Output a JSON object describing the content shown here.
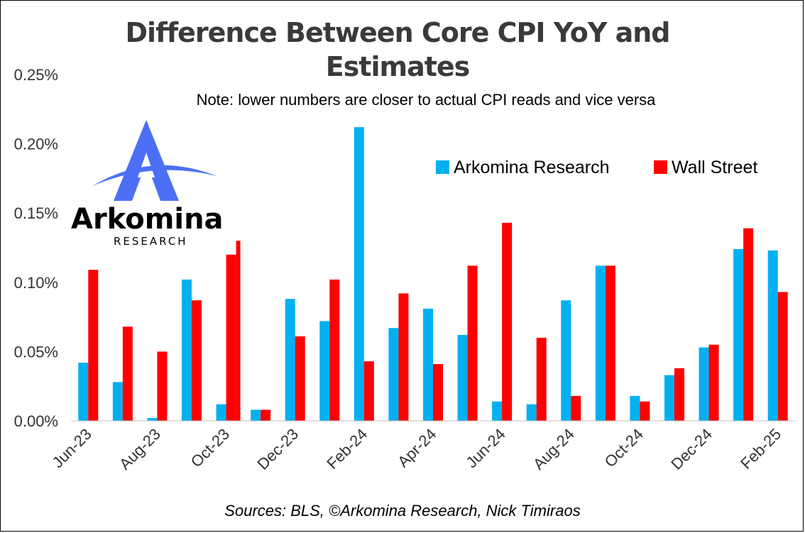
{
  "chart_data": {
    "type": "bar",
    "title": "Difference Between Core CPI YoY and Estimates",
    "subtitle": "Note: lower numbers are closer to actual CPI reads and vice versa",
    "source": "Sources: BLS, ©Arkomina Research, Nick Timiraos",
    "xlabel": "",
    "ylabel": "",
    "ylim": [
      0,
      0.25
    ],
    "yticks": [
      "0.00%",
      "0.05%",
      "0.10%",
      "0.15%",
      "0.20%",
      "0.25%"
    ],
    "grid": false,
    "legend_position": "top-right",
    "categories": [
      "Jun-23",
      "Jul-23",
      "Aug-23",
      "Sep-23",
      "Oct-23",
      "Nov-23",
      "Dec-23",
      "Jan-24",
      "Feb-24",
      "Mar-24",
      "Apr-24",
      "May-24",
      "Jun-24",
      "Jul-24",
      "Aug-24",
      "Sep-24",
      "Oct-24",
      "Nov-24",
      "Dec-24",
      "Jan-25",
      "Feb-25"
    ],
    "tick_labels": [
      "Jun-23",
      "Aug-23",
      "Oct-23",
      "Dec-23",
      "Feb-24",
      "Apr-24",
      "Jun-24",
      "Aug-24",
      "Oct-24",
      "Dec-24",
      "Feb-25"
    ],
    "series": [
      {
        "name": "Arkomina Research",
        "color": "#00B0F0",
        "values": [
          0.042,
          0.028,
          0.002,
          0.102,
          0.012,
          0.008,
          0.088,
          0.072,
          0.212,
          0.067,
          0.081,
          0.062,
          0.014,
          0.012,
          0.087,
          0.112,
          0.018,
          0.033,
          0.053,
          0.124,
          0.123
        ]
      },
      {
        "name": "Wall Street",
        "color": "#FF0000",
        "values": [
          0.109,
          0.068,
          0.05,
          0.087,
          0.12,
          0.008,
          0.061,
          0.102,
          0.043,
          0.092,
          0.041,
          0.112,
          0.143,
          0.06,
          0.018,
          0.112,
          0.014,
          0.038,
          0.055,
          0.139,
          0.093
        ]
      }
    ],
    "extra_bar": {
      "after_category": "Oct-23",
      "series": "Wall Street",
      "value": 0.13
    }
  },
  "logo": {
    "name": "Arkomina",
    "sub": "RESEARCH",
    "icon": "a-mountain-arc-icon",
    "color": "#4C6FF5"
  }
}
